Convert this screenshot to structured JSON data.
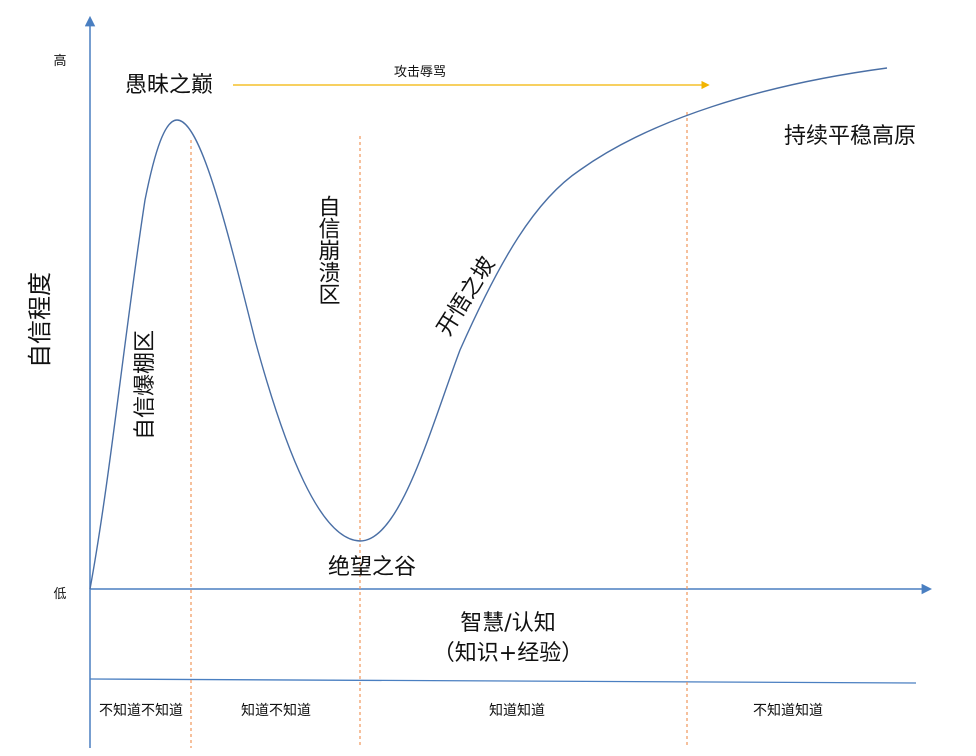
{
  "axes": {
    "y_title": "自信程度",
    "y_high": "高",
    "y_low": "低",
    "x_title_line1": "智慧/认知",
    "x_title_line2": "（知识+经验）"
  },
  "peak_label": "愚昧之巅",
  "arrow_label": "攻击辱骂",
  "plateau_label": "持续平稳高原",
  "valley_label": "绝望之谷",
  "zone1_label": "自信爆棚区",
  "zone2_label": "自信崩溃区",
  "slope_label": "开悟之坡",
  "stages": [
    "不知道不知道",
    "知道不知道",
    "知道知道",
    "不知道知道"
  ],
  "colors": {
    "axis": "#4a7fc1",
    "curve": "#4a6fa5",
    "arrow": "#f2b400",
    "divider": "#f0965a"
  }
}
